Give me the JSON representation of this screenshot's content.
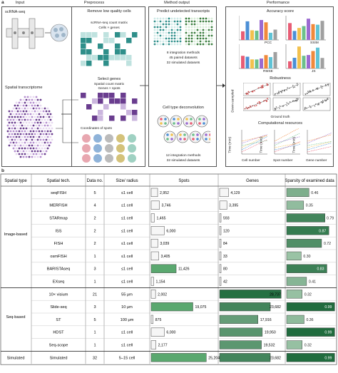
{
  "panel_a": {
    "label": "a",
    "input": {
      "header": "Input",
      "scrna": "scRNA-seq",
      "spatial": "Spatial transcriptome"
    },
    "preprocess": {
      "header": "Preprocess",
      "remove": "Remove low quality cells",
      "count_matrix": "scRNA-seq count matrix",
      "cells_genes": "Cells × genes",
      "select": "Select genes",
      "spatial_matrix": "Spatial count matrix",
      "genes_spots": "Genes × spots",
      "coords": "Coordinates of spots"
    },
    "method": {
      "header": "Method output",
      "predict": "Predict undetected transcripts",
      "predict_lines": [
        "8 integration methods",
        "45 paired datasets",
        "32 simulated datasets"
      ],
      "deconv": "Cell type deconvolution",
      "deconv_lines": [
        "12 integration methods",
        "32 simulated datasets"
      ]
    },
    "performance": {
      "header": "Performance",
      "accuracy": "Accuracy score",
      "metrics": [
        "PCC",
        "SSIM",
        "RMSE",
        "JS"
      ],
      "robustness": "Robustness",
      "downsampled": "Down-sampled",
      "ground_truth": "Ground truth",
      "computational": "Computational resources",
      "time_label": "Time (min)",
      "cell_number": "Cell number",
      "spot_number": "Spot number",
      "gene_number": "Gene number"
    }
  },
  "panel_b": {
    "label": "b",
    "headers": {
      "type": "Spatial type",
      "tech": "Spatial tech.",
      "data": "Data no.",
      "size": "Size/ radius",
      "spots": "Spots",
      "genes": "Genes",
      "sparsity": "Sparsity of examined data"
    },
    "groups": [
      {
        "name": "Image-based",
        "rows": [
          0,
          7
        ]
      },
      {
        "name": "Seq-based",
        "rows": [
          8,
          12
        ]
      },
      {
        "name": "Simulated",
        "rows": [
          13,
          13
        ]
      }
    ]
  },
  "chart_data": {
    "type": "table",
    "columns": [
      "Spatial tech.",
      "Data no.",
      "Size/radius",
      "Spots",
      "Genes",
      "Sparsity of examined data"
    ],
    "rows": [
      {
        "tech": "seqFISH",
        "data": "5",
        "size": "≤1 cell",
        "spots": 2952,
        "spots_label": "2,952",
        "genes": 4129,
        "genes_label": "4,129",
        "sparsity": 0.46,
        "sparsity_label": "0.46"
      },
      {
        "tech": "MERFISH",
        "data": "4",
        "size": "≤1 cell",
        "spots": 3746,
        "spots_label": "3,746",
        "genes": 3395,
        "genes_label": "3,395",
        "sparsity": 0.35,
        "sparsity_label": "0.35"
      },
      {
        "tech": "STARmap",
        "data": "2",
        "size": "≤1 cell",
        "spots": 1465,
        "spots_label": "1,465",
        "genes": 593,
        "genes_label": "593",
        "sparsity": 0.79,
        "sparsity_label": "0.79"
      },
      {
        "tech": "ISS",
        "data": "2",
        "size": "≤1 cell",
        "spots": 6000,
        "spots_label": "6,000",
        "genes": 120,
        "genes_label": "120",
        "sparsity": 0.87,
        "sparsity_label": "0.87"
      },
      {
        "tech": "FISH",
        "data": "2",
        "size": "≤1 cell",
        "spots": 3039,
        "spots_label": "3,039",
        "genes": 84,
        "genes_label": "84",
        "sparsity": 0.72,
        "sparsity_label": "0.72"
      },
      {
        "tech": "osmFISH",
        "data": "1",
        "size": "≤1 cell",
        "spots": 3405,
        "spots_label": "3,405",
        "genes": 33,
        "genes_label": "33",
        "sparsity": 0.3,
        "sparsity_label": "0.30"
      },
      {
        "tech": "BARISTAseq",
        "data": "3",
        "size": "≤1 cell",
        "spots": 11426,
        "spots_label": "11,426",
        "genes": 80,
        "genes_label": "80",
        "sparsity": 0.83,
        "sparsity_label": "0.83"
      },
      {
        "tech": "EXseq",
        "data": "1",
        "size": "≤1 cell",
        "spots": 1154,
        "spots_label": "1,154",
        "genes": 42,
        "genes_label": "42",
        "sparsity": 0.41,
        "sparsity_label": "0.41"
      },
      {
        "tech": "10× visium",
        "data": "21",
        "size": "55 μm",
        "spots": 2002,
        "spots_label": "2,002",
        "genes": 28737,
        "genes_label": "28,737",
        "sparsity": 0.32,
        "sparsity_label": "0.32"
      },
      {
        "tech": "Slide-seq",
        "data": "3",
        "size": "10 μm",
        "spots": 19075,
        "spots_label": "19,075",
        "genes": 23682,
        "genes_label": "23,682",
        "sparsity": 0.99,
        "sparsity_label": "0.99"
      },
      {
        "tech": "ST",
        "data": "5",
        "size": "100 μm",
        "spots": 875,
        "spots_label": "875",
        "genes": 17916,
        "genes_label": "17,916",
        "sparsity": 0.36,
        "sparsity_label": "0.36"
      },
      {
        "tech": "HDST",
        "data": "1",
        "size": "≤1 cell",
        "spots": 6000,
        "spots_label": "6,000",
        "genes": 19950,
        "genes_label": "19,950",
        "sparsity": 0.99,
        "sparsity_label": "0.99"
      },
      {
        "tech": "Seq-scope",
        "data": "1",
        "size": "≤1 cell",
        "spots": 2177,
        "spots_label": "2,177",
        "genes": 19532,
        "genes_label": "19,532",
        "sparsity": 0.32,
        "sparsity_label": "0.32"
      },
      {
        "tech": "Simulated",
        "data": "32",
        "size": "5–15 cell",
        "spots": 25204,
        "spots_label": "25,204",
        "genes": 23682,
        "genes_label": "23,682",
        "sparsity": 0.99,
        "sparsity_label": "0.99"
      }
    ],
    "spots_max": 30000,
    "genes_max": 30000
  },
  "colors": {
    "green_dark": "#1e6b3c",
    "green_mid": "#5aa86f",
    "green_light": "#cfe8d2",
    "purple": "#6a3d8f",
    "teal": "#2f8f8a",
    "border": "#555555"
  }
}
